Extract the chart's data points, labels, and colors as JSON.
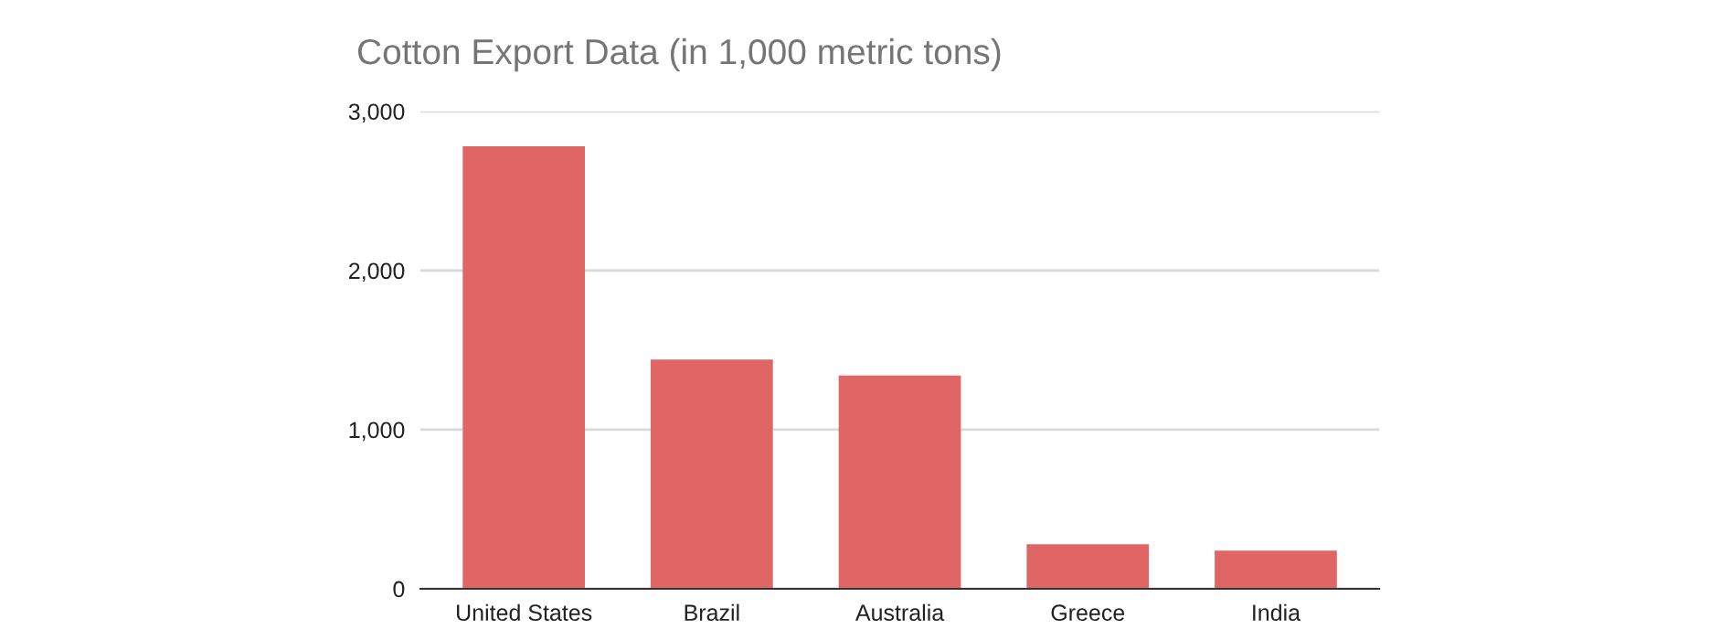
{
  "chart_data": {
    "type": "bar",
    "title": "Cotton Export Data (in 1,000 metric tons)",
    "categories": [
      "United States",
      "Brazil",
      "Australia",
      "Greece",
      "India"
    ],
    "values": [
      2780,
      1440,
      1340,
      280,
      240
    ],
    "color": "#e06666",
    "ylim": [
      0,
      3000
    ],
    "yticks": [
      {
        "value": 0,
        "label": "0"
      },
      {
        "value": 1000,
        "label": "1,000"
      },
      {
        "value": 2000,
        "label": "2,000"
      },
      {
        "value": 3000,
        "label": "3,000"
      }
    ],
    "grid": "y"
  }
}
